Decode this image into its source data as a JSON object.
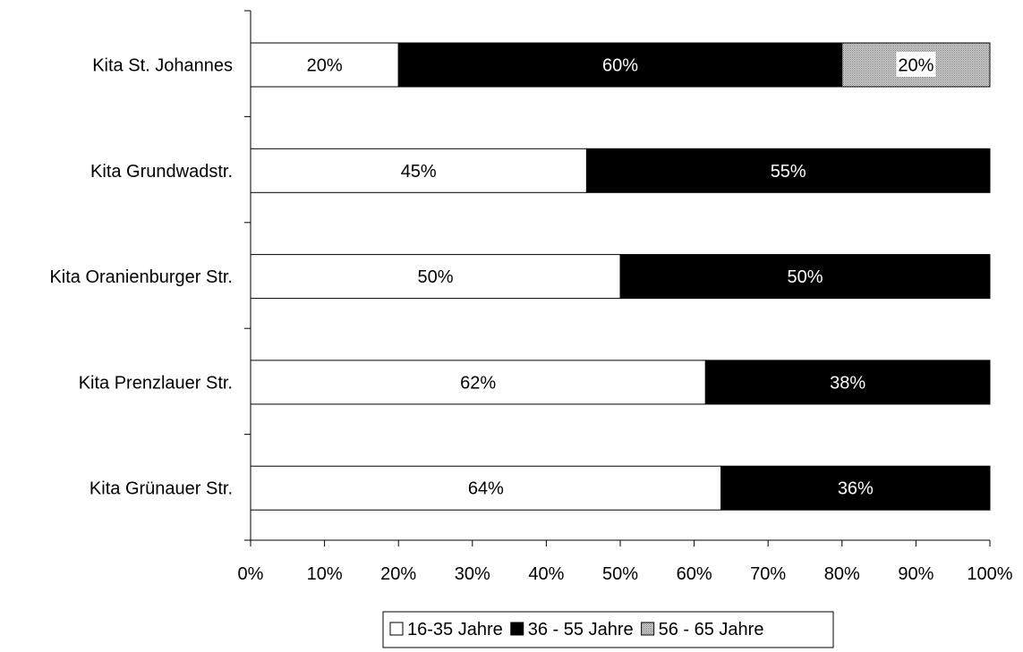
{
  "chart_data": {
    "type": "bar",
    "orientation": "horizontal",
    "stacked": "percent",
    "categories": [
      "Kita St. Johannes",
      "Kita Grundwadstr.",
      "Kita Oranienburger Str.",
      "Kita Prenzlauer Str.",
      "Kita Grünauer Str."
    ],
    "series": [
      {
        "name": "16-35 Jahre",
        "values": [
          20,
          45.45,
          50,
          61.54,
          63.64
        ],
        "labels": [
          "20%",
          "45%",
          "50%",
          "62%",
          "64%"
        ],
        "fill": "#ffffff",
        "label_color": "#000000"
      },
      {
        "name": "36 - 55 Jahre",
        "values": [
          60,
          54.55,
          50,
          38.46,
          36.36
        ],
        "labels": [
          "60%",
          "55%",
          "50%",
          "38%",
          "36%"
        ],
        "fill": "#000000",
        "label_color": "#ffffff"
      },
      {
        "name": "56 - 65 Jahre",
        "values": [
          20,
          0,
          0,
          0,
          0
        ],
        "labels": [
          "20%",
          "",
          "",
          "",
          ""
        ],
        "fill": "pattern",
        "label_color": "#000000"
      }
    ],
    "x_ticks": [
      "0%",
      "10%",
      "20%",
      "30%",
      "40%",
      "50%",
      "60%",
      "70%",
      "80%",
      "90%",
      "100%"
    ],
    "xlim": [
      0,
      100
    ],
    "legend_position": "bottom",
    "grid": false
  }
}
